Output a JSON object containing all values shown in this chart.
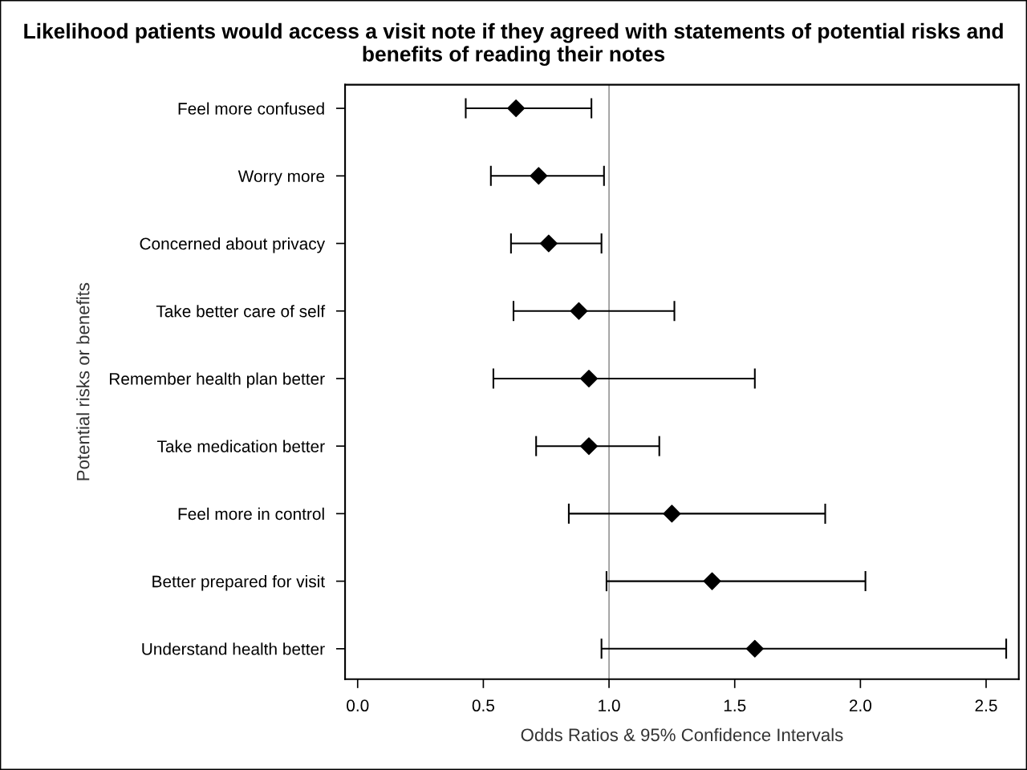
{
  "chart_data": {
    "type": "scatter",
    "orientation": "horizontal",
    "title": "Likelihood patients would access a visit note if they agreed with statements of potential risks and benefits of reading their notes",
    "xlabel": "Odds Ratios & 95% Confidence Intervals",
    "ylabel": "Potential risks or benefits",
    "categories": [
      "Feel more confused",
      "Worry more",
      "Concerned about privacy",
      "Take better care of self",
      "Remember health plan better",
      "Take medication better",
      "Feel more in control",
      "Better prepared for visit",
      "Understand health better"
    ],
    "color": "#000000",
    "values": [
      0.63,
      0.72,
      0.76,
      0.88,
      0.92,
      0.92,
      1.25,
      1.41,
      1.58
    ],
    "errors": [
      [
        0.43,
        0.93
      ],
      [
        0.53,
        0.98
      ],
      [
        0.61,
        0.97
      ],
      [
        0.62,
        1.26
      ],
      [
        0.54,
        1.58
      ],
      [
        0.71,
        1.2
      ],
      [
        0.84,
        1.86
      ],
      [
        0.99,
        2.02
      ],
      [
        0.97,
        2.58
      ]
    ],
    "xlim": [
      -0.05,
      2.63
    ],
    "xticks": [
      {
        "value": 0,
        "label": "0.0"
      },
      0.5,
      {
        "value": 1,
        "label": "1.0"
      },
      1.5,
      {
        "value": 2,
        "label": "2.0"
      },
      2.5
    ],
    "ref_lines": [
      {
        "axis": "x",
        "value": 1,
        "color": "#808080"
      }
    ],
    "marker": "diamond",
    "grid": false,
    "legend": false
  }
}
